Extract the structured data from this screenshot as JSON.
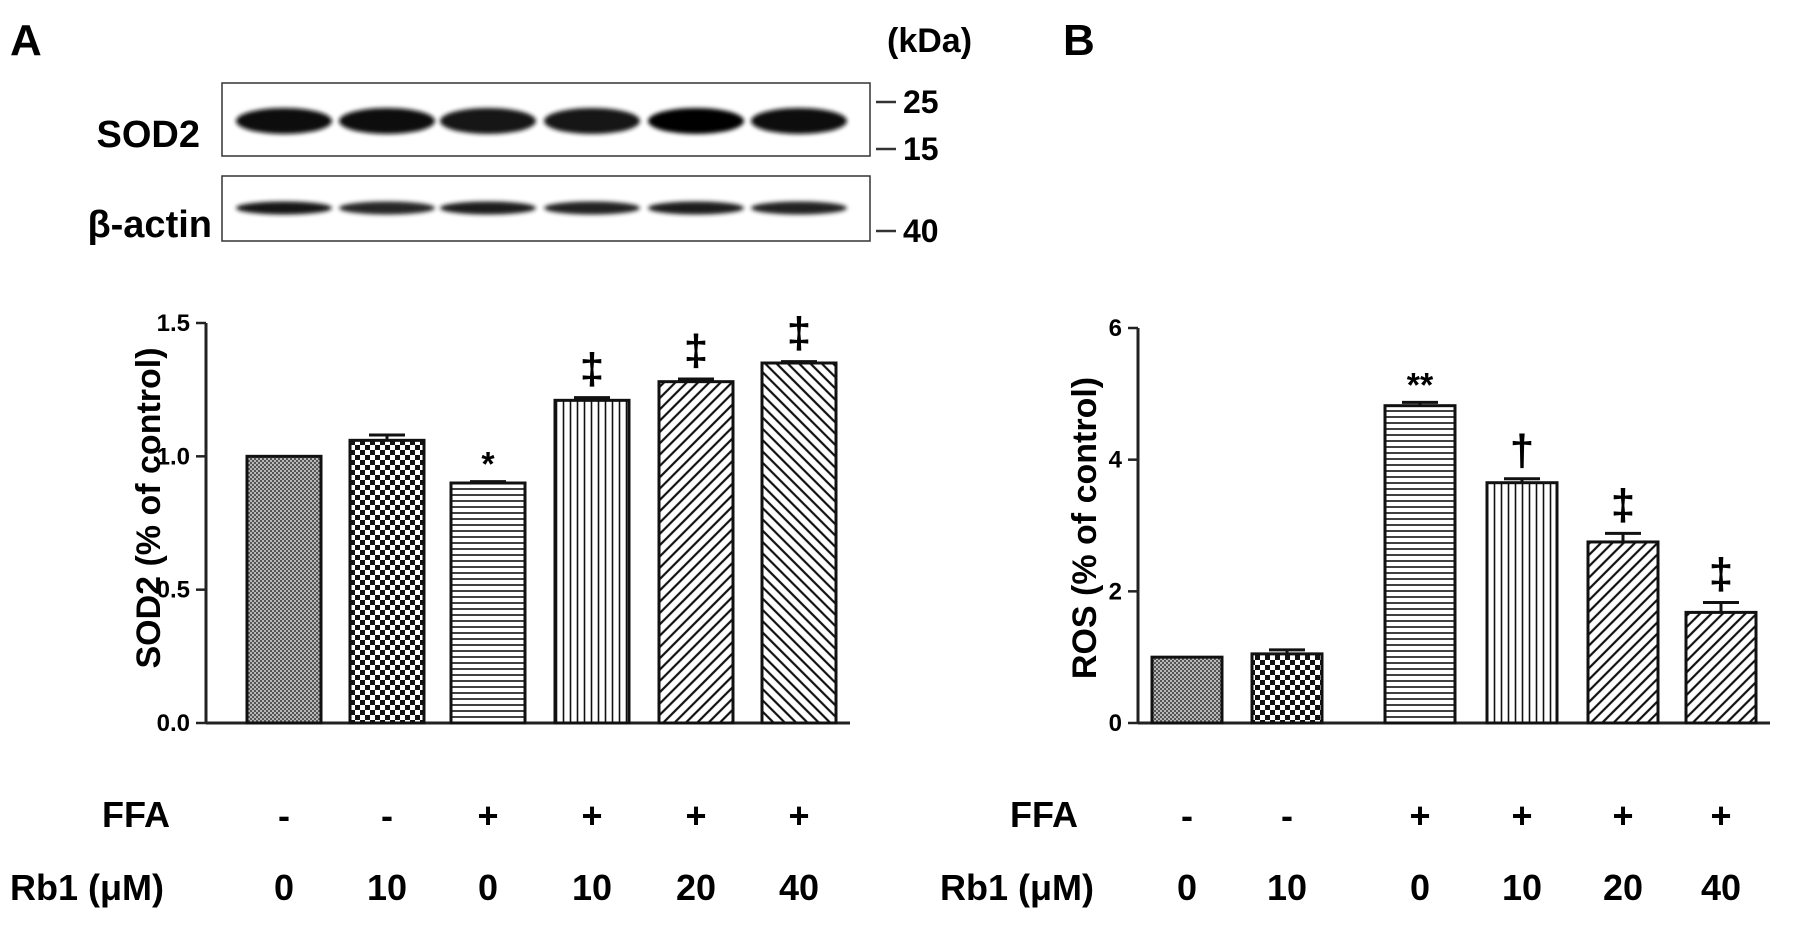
{
  "panel_a": {
    "label": "A",
    "blot": {
      "unit_label": "(kDa)",
      "rows": [
        {
          "name": "SOD2",
          "markers": [
            "25",
            "15"
          ],
          "band_intensity": [
            0.95,
            0.95,
            0.9,
            0.92,
            0.98,
            0.95
          ]
        },
        {
          "name": "β-actin",
          "markers": [
            "40"
          ],
          "band_intensity": [
            0.9,
            0.85,
            0.88,
            0.87,
            0.88,
            0.87
          ]
        }
      ]
    }
  },
  "panel_b": {
    "label": "B"
  },
  "conditions": {
    "ffa_label": "FFA",
    "rb1_label": "Rb1 (μM)",
    "ffa": [
      "-",
      "-",
      "+",
      "+",
      "+",
      "+"
    ],
    "rb1": [
      "0",
      "10",
      "0",
      "10",
      "20",
      "40"
    ]
  },
  "chart_data": [
    {
      "type": "bar",
      "panel": "A",
      "title": "",
      "xlabel": "",
      "ylabel": "SOD2  (% of control)",
      "ylim": [
        0,
        1.5
      ],
      "yticks": [
        "0.0",
        "0.5",
        "1.0",
        "1.5"
      ],
      "categories": [
        "FFA - / Rb1 0",
        "FFA - / Rb1 10",
        "FFA + / Rb1 0",
        "FFA + / Rb1 10",
        "FFA + / Rb1 20",
        "FFA + / Rb1 40"
      ],
      "values": [
        1.0,
        1.06,
        0.9,
        1.21,
        1.28,
        1.35
      ],
      "errors": [
        0.0,
        0.02,
        0.005,
        0.01,
        0.01,
        0.005
      ],
      "annotations": [
        "",
        "",
        "*",
        "‡",
        "‡",
        "‡"
      ],
      "patterns": [
        "fine-dots",
        "checker",
        "horizontal",
        "vertical",
        "diagonal-right",
        "diagonal-left"
      ]
    },
    {
      "type": "bar",
      "panel": "B",
      "title": "",
      "xlabel": "",
      "ylabel": "ROS  (% of control)",
      "ylim": [
        0,
        6
      ],
      "yticks": [
        "0",
        "2",
        "4",
        "6"
      ],
      "categories": [
        "FFA - / Rb1 0",
        "FFA - / Rb1 10",
        "FFA + / Rb1 0",
        "FFA + / Rb1 10",
        "FFA + / Rb1 20",
        "FFA + / Rb1 40"
      ],
      "values": [
        1.0,
        1.05,
        4.82,
        3.65,
        2.75,
        1.68
      ],
      "errors": [
        0.0,
        0.06,
        0.05,
        0.06,
        0.13,
        0.15
      ],
      "annotations": [
        "",
        "",
        "**",
        "†",
        "‡",
        "‡"
      ],
      "patterns": [
        "fine-dots",
        "checker",
        "horizontal",
        "vertical",
        "diagonal-right",
        "diagonal-right"
      ]
    }
  ]
}
